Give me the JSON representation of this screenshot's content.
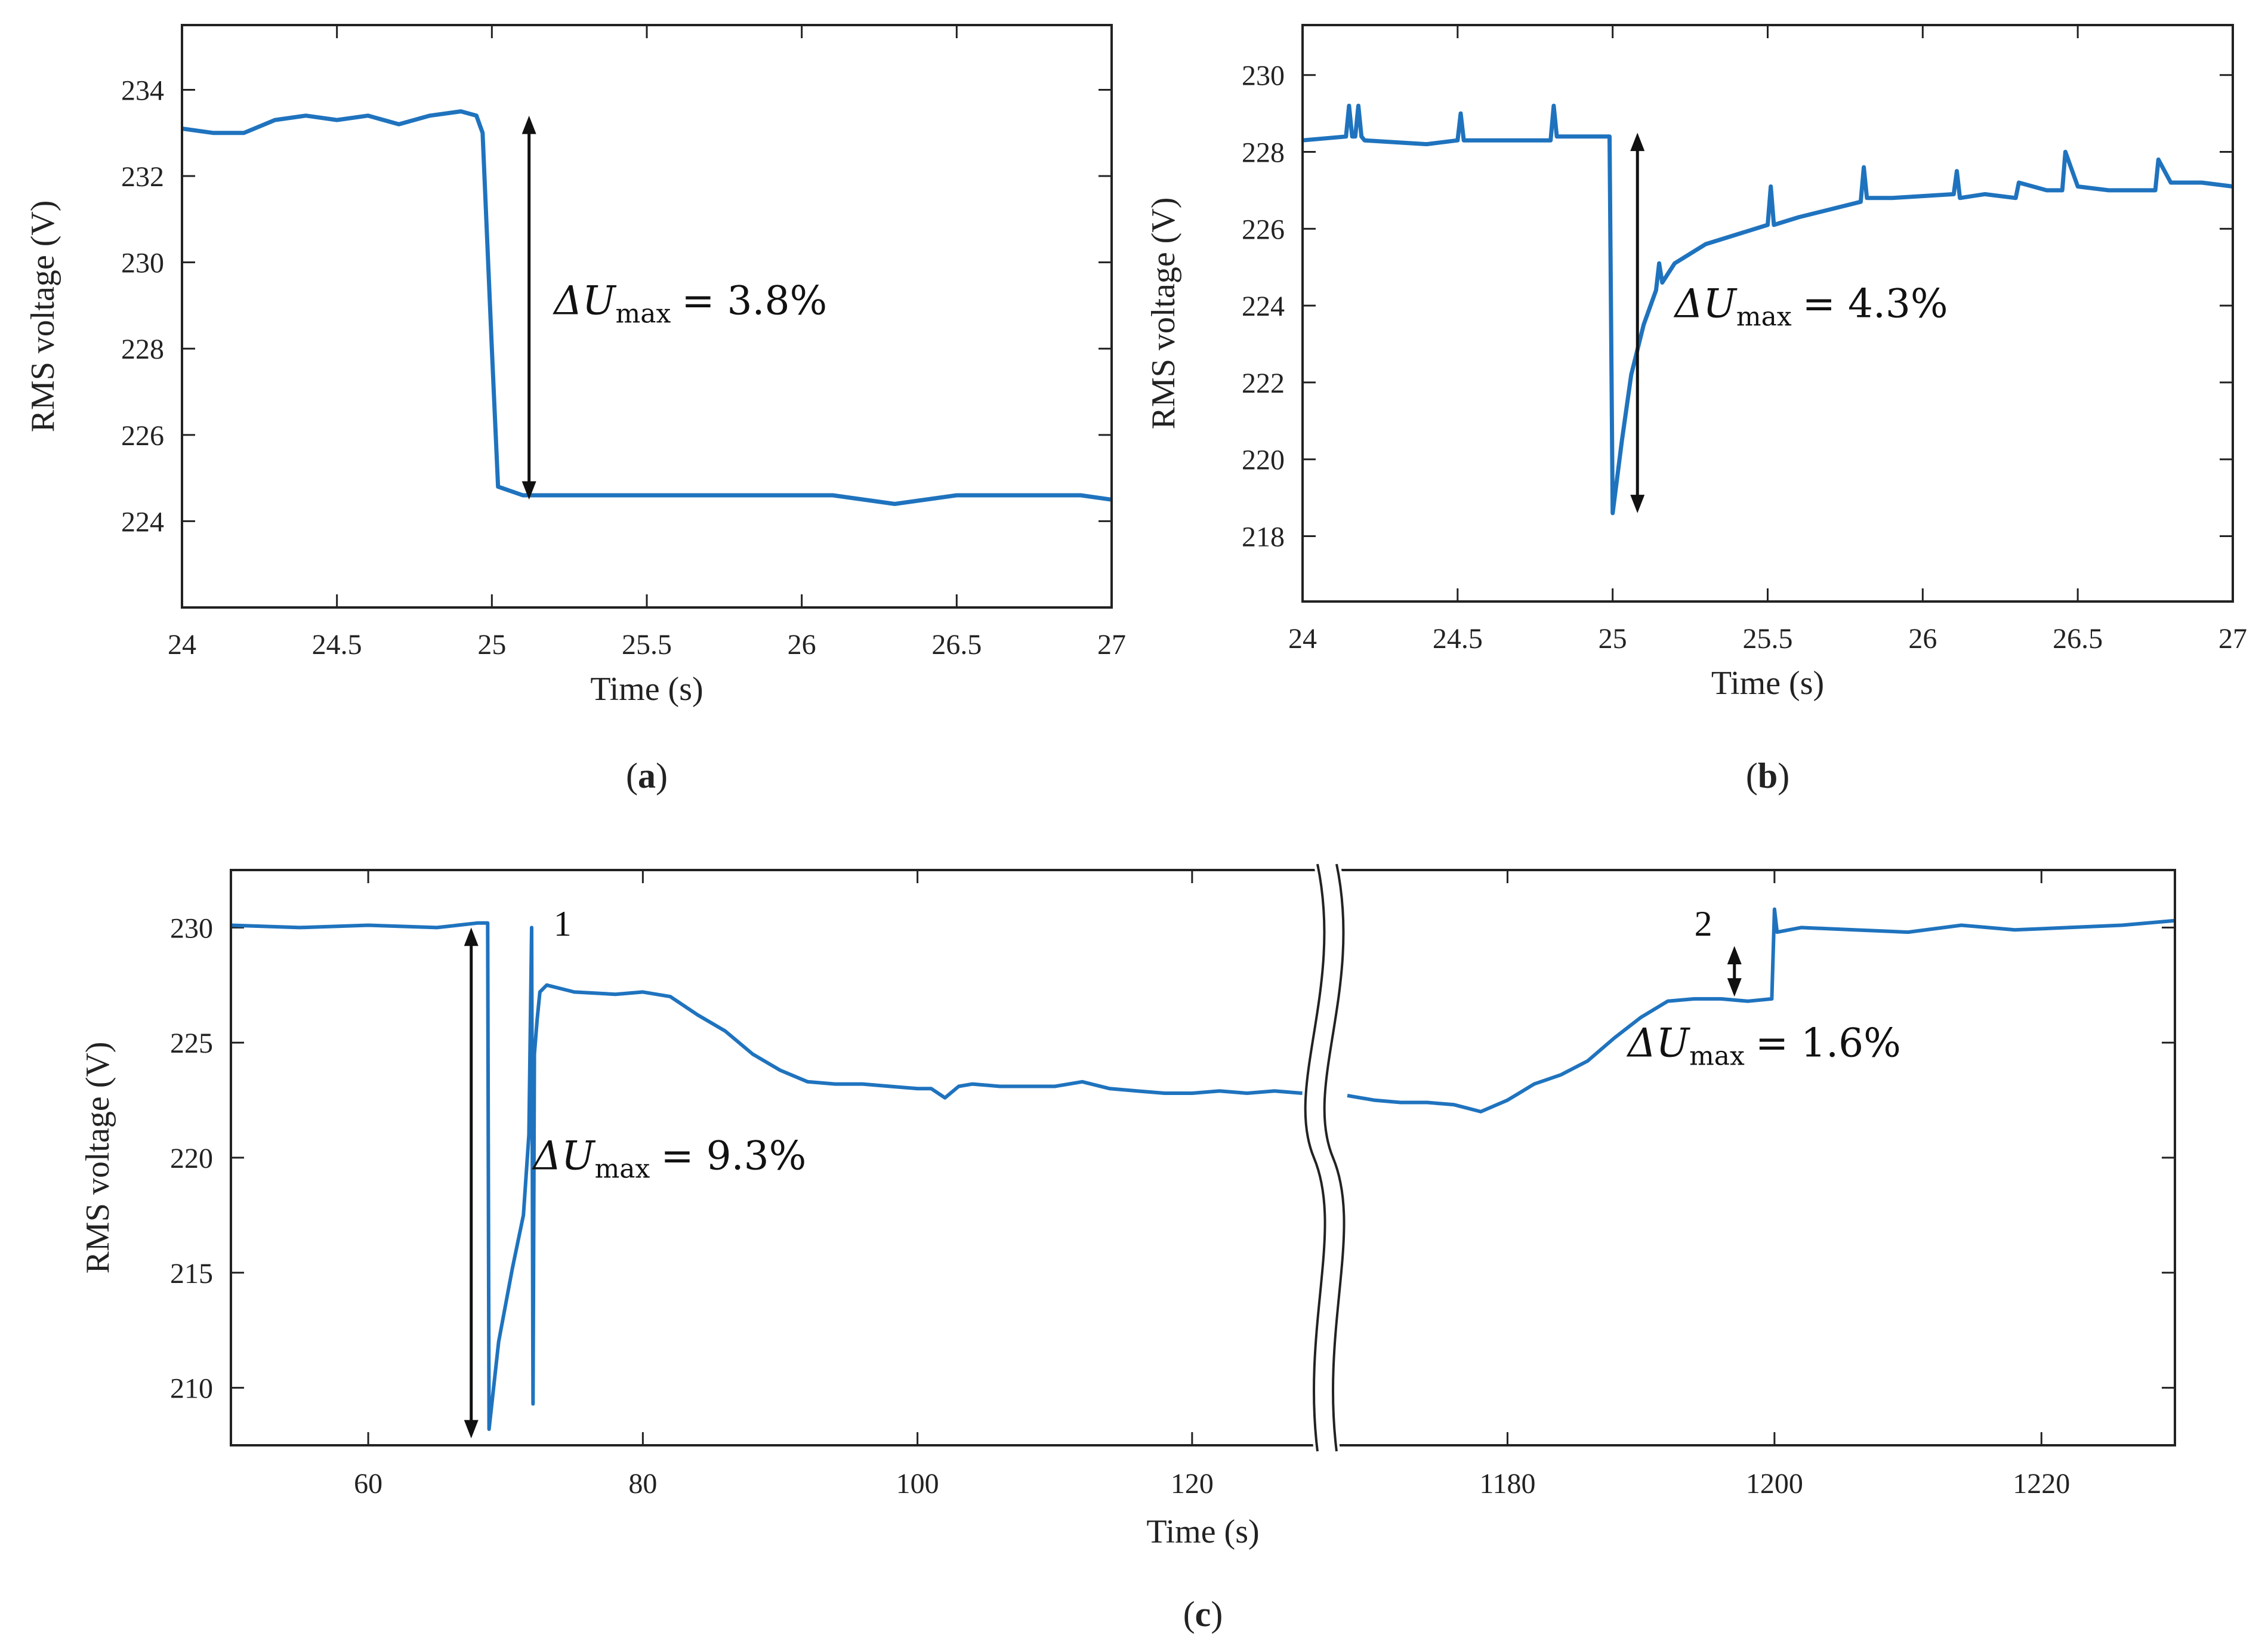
{
  "line_color": "#1f73be",
  "chart_data": [
    {
      "type": "line",
      "panel_label": "a",
      "xlabel": "Time (s)",
      "ylabel": "RMS voltage (V)",
      "xlim": [
        24,
        27
      ],
      "ylim": [
        222.0,
        235.5
      ],
      "xticks": [
        24,
        24.5,
        25,
        25.5,
        26,
        26.5,
        27
      ],
      "xtick_labels": [
        "24",
        "24.5",
        "25",
        "25.5",
        "26",
        "26.5",
        "27"
      ],
      "yticks": [
        224,
        226,
        228,
        230,
        232,
        234
      ],
      "ytick_labels": [
        "224",
        "226",
        "228",
        "230",
        "232",
        "234"
      ],
      "series": [
        {
          "name": "RMS voltage",
          "x": [
            24.0,
            24.1,
            24.2,
            24.3,
            24.4,
            24.5,
            24.6,
            24.7,
            24.8,
            24.9,
            24.95,
            24.97,
            25.0,
            25.02,
            25.1,
            25.3,
            25.5,
            25.7,
            25.9,
            26.1,
            26.3,
            26.5,
            26.7,
            26.9,
            27.0
          ],
          "y": [
            233.1,
            233.0,
            233.0,
            233.3,
            233.4,
            233.3,
            233.4,
            233.2,
            233.4,
            233.5,
            233.4,
            233.0,
            228.0,
            224.8,
            224.6,
            224.6,
            224.6,
            224.6,
            224.6,
            224.6,
            224.4,
            224.6,
            224.6,
            224.6,
            224.5
          ]
        }
      ],
      "annotations": [
        {
          "type": "double-arrow",
          "x": 25.12,
          "y_from": 233.4,
          "y_to": 224.5
        },
        {
          "type": "text",
          "symbol": "ΔU",
          "subscript": "max",
          "text": "= 3.8%",
          "x": 25.2,
          "y": 228.8
        }
      ]
    },
    {
      "type": "line",
      "panel_label": "b",
      "xlabel": "Time (s)",
      "ylabel": "RMS voltage (V)",
      "xlim": [
        24,
        27
      ],
      "ylim": [
        216.3,
        231.3
      ],
      "xticks": [
        24,
        24.5,
        25,
        25.5,
        26,
        26.5,
        27
      ],
      "xtick_labels": [
        "24",
        "24.5",
        "25",
        "25.5",
        "26",
        "26.5",
        "27"
      ],
      "yticks": [
        218,
        220,
        222,
        224,
        226,
        228,
        230
      ],
      "ytick_labels": [
        "218",
        "220",
        "222",
        "224",
        "226",
        "228",
        "230"
      ],
      "series": [
        {
          "name": "RMS voltage",
          "x": [
            24.0,
            24.14,
            24.15,
            24.16,
            24.17,
            24.18,
            24.19,
            24.2,
            24.4,
            24.5,
            24.51,
            24.52,
            24.6,
            24.8,
            24.81,
            24.82,
            24.9,
            24.99,
            25.0,
            25.03,
            25.06,
            25.1,
            25.14,
            25.15,
            25.16,
            25.2,
            25.3,
            25.5,
            25.51,
            25.52,
            25.6,
            25.8,
            25.81,
            25.82,
            25.9,
            26.1,
            26.11,
            26.12,
            26.2,
            26.3,
            26.31,
            26.4,
            26.45,
            26.46,
            26.5,
            26.6,
            26.75,
            26.76,
            26.8,
            26.9,
            27.0
          ],
          "y": [
            228.3,
            228.4,
            229.2,
            228.4,
            228.4,
            229.2,
            228.4,
            228.3,
            228.2,
            228.3,
            229.0,
            228.3,
            228.3,
            228.3,
            229.2,
            228.4,
            228.4,
            228.4,
            218.6,
            220.5,
            222.2,
            223.5,
            224.4,
            225.1,
            224.6,
            225.1,
            225.6,
            226.1,
            227.1,
            226.1,
            226.3,
            226.7,
            227.6,
            226.8,
            226.8,
            226.9,
            227.5,
            226.8,
            226.9,
            226.8,
            227.2,
            227.0,
            227.0,
            228.0,
            227.1,
            227.0,
            227.0,
            227.8,
            227.2,
            227.2,
            227.1
          ]
        }
      ],
      "annotations": [
        {
          "type": "double-arrow",
          "x": 25.08,
          "y_from": 228.5,
          "y_to": 218.6
        },
        {
          "type": "text",
          "symbol": "ΔU",
          "subscript": "max",
          "text": "= 4.3%",
          "x": 25.2,
          "y": 223.7
        }
      ]
    },
    {
      "type": "line",
      "panel_label": "c",
      "xlabel": "Time (s)",
      "ylabel": "RMS voltage (V)",
      "broken_axis": true,
      "segments": [
        {
          "xlim": [
            50,
            130
          ],
          "xticks": [
            60,
            80,
            100,
            120
          ],
          "xtick_labels": [
            "60",
            "80",
            "100",
            "120"
          ]
        },
        {
          "xlim": [
            1168,
            1230
          ],
          "xticks": [
            1180,
            1200,
            1220
          ],
          "xtick_labels": [
            "1180",
            "1200",
            "1220"
          ]
        }
      ],
      "ylim": [
        207.5,
        232.5
      ],
      "yticks": [
        210,
        215,
        220,
        225,
        230
      ],
      "ytick_labels": [
        "210",
        "215",
        "220",
        "225",
        "230"
      ],
      "series": [
        {
          "name": "RMS voltage (segment 1)",
          "x": [
            50,
            55,
            60,
            65,
            68,
            68.7,
            68.8,
            69.5,
            70.5,
            71.3,
            71.7,
            71.9,
            72.0,
            72.1,
            72.3,
            72.5,
            73,
            75,
            78,
            80,
            82,
            84,
            86,
            88,
            90,
            92,
            94,
            96,
            98,
            100,
            101,
            102,
            103,
            104,
            106,
            108,
            110,
            112,
            114,
            116,
            118,
            120,
            122,
            124,
            126,
            128,
            129.5
          ],
          "y": [
            230.1,
            230.0,
            230.1,
            230.0,
            230.2,
            230.2,
            208.2,
            212.0,
            215.2,
            217.5,
            221.0,
            230.0,
            209.3,
            224.5,
            226.0,
            227.2,
            227.5,
            227.2,
            227.1,
            227.2,
            227.0,
            226.2,
            225.5,
            224.5,
            223.8,
            223.3,
            223.2,
            223.2,
            223.1,
            223.0,
            223.0,
            222.6,
            223.1,
            223.2,
            223.1,
            223.1,
            223.1,
            223.3,
            223.0,
            222.9,
            222.8,
            222.8,
            222.9,
            222.8,
            222.9,
            222.8,
            223.0
          ]
        },
        {
          "name": "RMS voltage (segment 2)",
          "x": [
            1168,
            1170,
            1172,
            1174,
            1176,
            1178,
            1180,
            1182,
            1184,
            1186,
            1188,
            1190,
            1192,
            1194,
            1196,
            1198,
            1199.8,
            1200.0,
            1200.2,
            1202,
            1206,
            1210,
            1214,
            1218,
            1222,
            1226,
            1230
          ],
          "y": [
            222.7,
            222.5,
            222.4,
            222.4,
            222.3,
            222.0,
            222.5,
            223.2,
            223.6,
            224.2,
            225.2,
            226.1,
            226.8,
            226.9,
            226.9,
            226.8,
            226.9,
            230.8,
            229.8,
            230.0,
            229.9,
            229.8,
            230.1,
            229.9,
            230.0,
            230.1,
            230.3
          ]
        }
      ],
      "annotations": [
        {
          "type": "double-arrow",
          "segment": 1,
          "x": 67.5,
          "y_from": 230.0,
          "y_to": 207.8
        },
        {
          "type": "text",
          "label": "1",
          "segment": 1,
          "x": 73.5,
          "y": 230.3
        },
        {
          "type": "text",
          "symbol": "ΔU",
          "subscript": "max",
          "text": "= 9.3%",
          "segment": 1,
          "x": 72.0,
          "y": 219.5
        },
        {
          "type": "double-arrow",
          "segment": 2,
          "x": 1197,
          "y_from": 229.2,
          "y_to": 227.0
        },
        {
          "type": "text",
          "label": "2",
          "segment": 2,
          "x": 1194,
          "y": 230.3
        },
        {
          "type": "text",
          "symbol": "ΔU",
          "subscript": "max",
          "text": "= 1.6%",
          "segment": 2,
          "x": 1189,
          "y": 224.4
        }
      ]
    }
  ]
}
